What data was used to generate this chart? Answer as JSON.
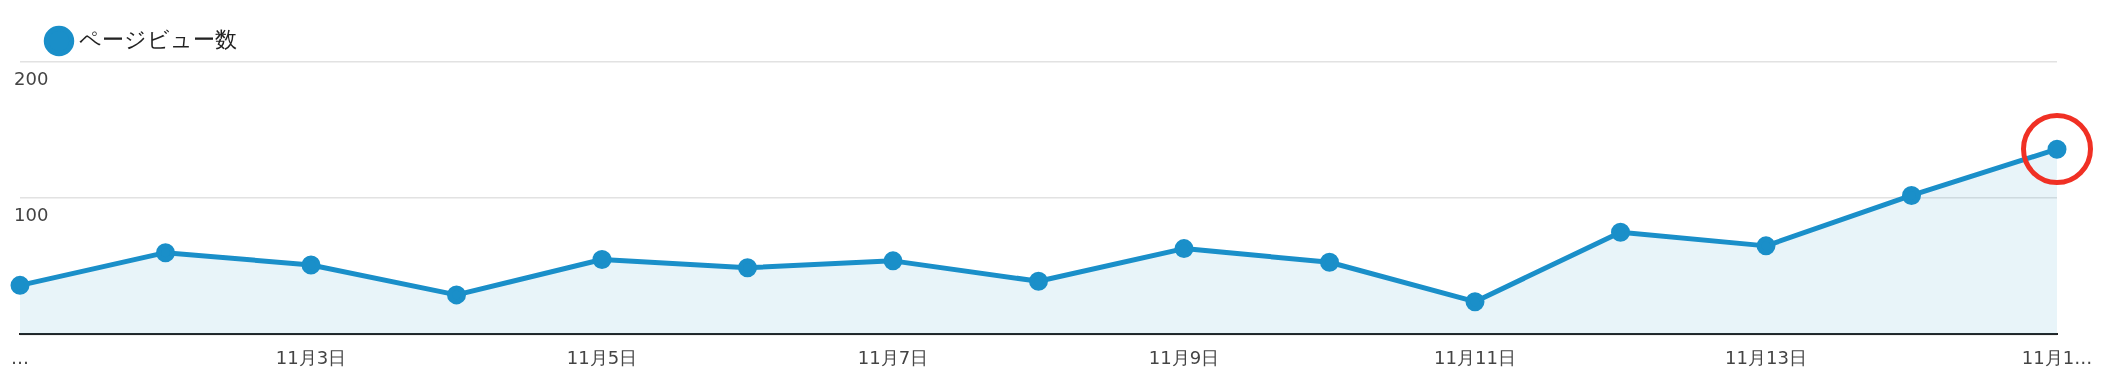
{
  "chart_data": {
    "type": "area",
    "categories": [
      "…",
      null,
      "11月3日",
      null,
      "11月5日",
      null,
      "11月7日",
      null,
      "11月9日",
      null,
      "11月11日",
      null,
      "11月13日",
      null,
      "11月1…"
    ],
    "series": [
      {
        "name": "ページビュー数",
        "color": "#1a8fc9",
        "values": [
          36,
          60,
          51,
          29,
          55,
          49,
          54,
          39,
          63,
          53,
          24,
          75,
          65,
          102,
          136
        ]
      }
    ],
    "ylim": [
      0,
      200
    ],
    "yticks": [
      {
        "value": 0,
        "label": null
      },
      100,
      200
    ],
    "grid": "y",
    "legend": "top left",
    "marker": "circle"
  }
}
